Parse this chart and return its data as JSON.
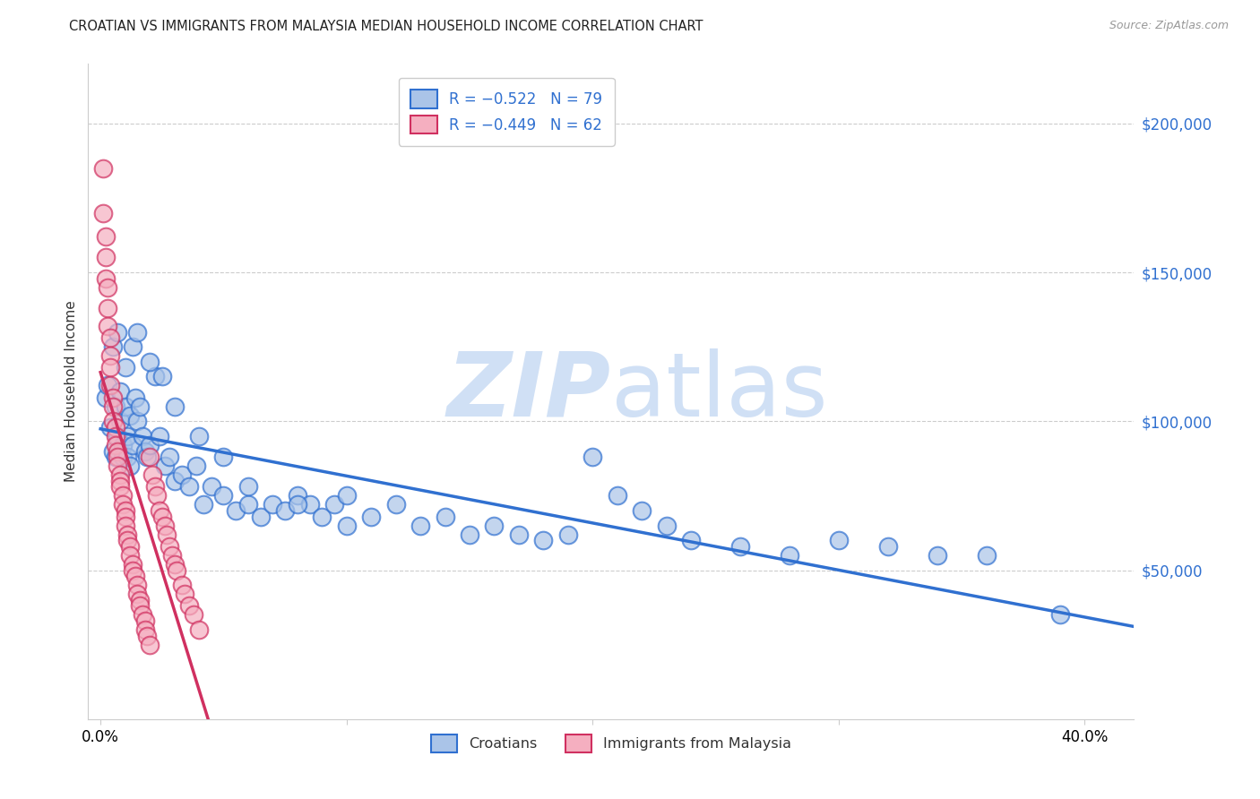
{
  "title": "CROATIAN VS IMMIGRANTS FROM MALAYSIA MEDIAN HOUSEHOLD INCOME CORRELATION CHART",
  "source": "Source: ZipAtlas.com",
  "xlabel_ticks": [
    "0.0%",
    "",
    "",
    "",
    "40.0%"
  ],
  "xlabel_values": [
    0.0,
    0.1,
    0.2,
    0.3,
    0.4
  ],
  "ylabel": "Median Household Income",
  "ylabel_ticks": [
    50000,
    100000,
    150000,
    200000
  ],
  "ylabel_labels": [
    "$50,000",
    "$100,000",
    "$150,000",
    "$200,000"
  ],
  "xlim": [
    -0.005,
    0.42
  ],
  "ylim": [
    0,
    220000
  ],
  "legend_blue_label": "R = −0.522   N = 79",
  "legend_pink_label": "R = −0.449   N = 62",
  "croatians_label": "Croatians",
  "malaysia_label": "Immigrants from Malaysia",
  "blue_color": "#aac4e8",
  "pink_color": "#f5afc0",
  "blue_line_color": "#3070d0",
  "pink_line_color": "#d03060",
  "watermark_zip": "ZIP",
  "watermark_atlas": "atlas",
  "watermark_color": "#d0e0f5",
  "blue_scatter_x": [
    0.002,
    0.003,
    0.004,
    0.005,
    0.005,
    0.006,
    0.006,
    0.007,
    0.007,
    0.008,
    0.008,
    0.009,
    0.009,
    0.01,
    0.01,
    0.011,
    0.011,
    0.012,
    0.012,
    0.013,
    0.013,
    0.014,
    0.015,
    0.016,
    0.017,
    0.018,
    0.019,
    0.02,
    0.022,
    0.024,
    0.026,
    0.028,
    0.03,
    0.033,
    0.036,
    0.039,
    0.042,
    0.045,
    0.05,
    0.055,
    0.06,
    0.065,
    0.07,
    0.075,
    0.08,
    0.085,
    0.09,
    0.095,
    0.1,
    0.11,
    0.12,
    0.13,
    0.14,
    0.15,
    0.16,
    0.17,
    0.18,
    0.19,
    0.2,
    0.21,
    0.22,
    0.23,
    0.24,
    0.26,
    0.28,
    0.3,
    0.32,
    0.34,
    0.36,
    0.39,
    0.015,
    0.02,
    0.025,
    0.03,
    0.04,
    0.05,
    0.06,
    0.08,
    0.1
  ],
  "blue_scatter_y": [
    108000,
    112000,
    98000,
    125000,
    90000,
    105000,
    88000,
    95000,
    130000,
    100000,
    110000,
    92000,
    88000,
    105000,
    118000,
    95000,
    88000,
    102000,
    85000,
    92000,
    125000,
    108000,
    100000,
    105000,
    95000,
    90000,
    88000,
    92000,
    115000,
    95000,
    85000,
    88000,
    80000,
    82000,
    78000,
    85000,
    72000,
    78000,
    75000,
    70000,
    72000,
    68000,
    72000,
    70000,
    75000,
    72000,
    68000,
    72000,
    75000,
    68000,
    72000,
    65000,
    68000,
    62000,
    65000,
    62000,
    60000,
    62000,
    88000,
    75000,
    70000,
    65000,
    60000,
    58000,
    55000,
    60000,
    58000,
    55000,
    55000,
    35000,
    130000,
    120000,
    115000,
    105000,
    95000,
    88000,
    78000,
    72000,
    65000
  ],
  "pink_scatter_x": [
    0.001,
    0.001,
    0.002,
    0.002,
    0.002,
    0.003,
    0.003,
    0.003,
    0.004,
    0.004,
    0.004,
    0.004,
    0.005,
    0.005,
    0.005,
    0.006,
    0.006,
    0.006,
    0.007,
    0.007,
    0.007,
    0.008,
    0.008,
    0.008,
    0.009,
    0.009,
    0.01,
    0.01,
    0.01,
    0.011,
    0.011,
    0.012,
    0.012,
    0.013,
    0.013,
    0.014,
    0.015,
    0.015,
    0.016,
    0.016,
    0.017,
    0.018,
    0.018,
    0.019,
    0.02,
    0.02,
    0.021,
    0.022,
    0.023,
    0.024,
    0.025,
    0.026,
    0.027,
    0.028,
    0.029,
    0.03,
    0.031,
    0.033,
    0.034,
    0.036,
    0.038,
    0.04
  ],
  "pink_scatter_y": [
    185000,
    170000,
    162000,
    155000,
    148000,
    145000,
    138000,
    132000,
    128000,
    122000,
    118000,
    112000,
    108000,
    105000,
    100000,
    98000,
    95000,
    92000,
    90000,
    88000,
    85000,
    82000,
    80000,
    78000,
    75000,
    72000,
    70000,
    68000,
    65000,
    62000,
    60000,
    58000,
    55000,
    52000,
    50000,
    48000,
    45000,
    42000,
    40000,
    38000,
    35000,
    33000,
    30000,
    28000,
    25000,
    88000,
    82000,
    78000,
    75000,
    70000,
    68000,
    65000,
    62000,
    58000,
    55000,
    52000,
    50000,
    45000,
    42000,
    38000,
    35000,
    30000
  ]
}
